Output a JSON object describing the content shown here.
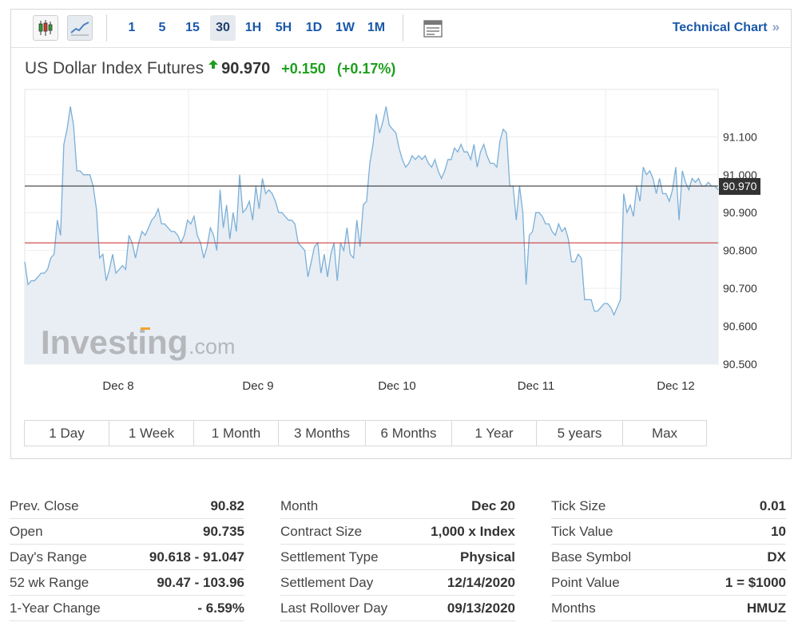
{
  "toolbar": {
    "icons": [
      "candlestick-icon",
      "line-chart-icon",
      "table-icon"
    ],
    "timeframes": [
      "1",
      "5",
      "15",
      "30",
      "1H",
      "5H",
      "1D",
      "1W",
      "1M"
    ],
    "active_timeframe": "30",
    "technical_chart_label": "Technical Chart",
    "technical_chart_chevron": "»"
  },
  "header": {
    "title": "US Dollar Index Futures",
    "price": "90.970",
    "change": "+0.150",
    "change_pct": "(+0.17%)"
  },
  "watermark": {
    "main": "Investing",
    "suffix": ".com"
  },
  "colors": {
    "line": "#7bafd8",
    "area_fill": "#e8eef4",
    "price_line": "#222222",
    "prev_close_line": "#c62828",
    "price_label_bg": "#333333",
    "up": "#1d9f1d",
    "link": "#1a59a8"
  },
  "chart_data": {
    "type": "area",
    "title": "US Dollar Index Futures",
    "x_labels": [
      "Dec 8",
      "Dec 9",
      "Dec 10",
      "Dec 11",
      "Dec 12"
    ],
    "y_ticks": [
      "91.100",
      "91.000",
      "90.900",
      "90.800",
      "90.700",
      "90.600",
      "90.500"
    ],
    "ylim": [
      90.5,
      91.225
    ],
    "grid": true,
    "current_price": 90.97,
    "current_price_label": "90.970",
    "prev_close_line": 90.82,
    "series": [
      {
        "values": [
          90.77,
          90.71,
          90.72,
          90.72,
          90.73,
          90.74,
          90.74,
          90.75,
          90.78,
          90.79,
          90.88,
          90.84,
          91.08,
          91.12,
          91.18,
          91.13,
          91.01,
          91.01,
          91.0,
          91.0,
          91.0,
          90.97,
          90.91,
          90.78,
          90.79,
          90.72,
          90.75,
          90.79,
          90.74,
          90.75,
          90.76,
          90.75,
          90.84,
          90.82,
          90.78,
          90.82,
          90.85,
          90.84,
          90.86,
          90.88,
          90.89,
          90.91,
          90.87,
          90.87,
          90.86,
          90.85,
          90.85,
          90.84,
          90.82,
          90.84,
          90.88,
          90.87,
          90.89,
          90.84,
          90.82,
          90.78,
          90.81,
          90.86,
          90.84,
          90.8,
          90.96,
          90.86,
          90.92,
          90.83,
          90.9,
          90.85,
          91.0,
          90.9,
          90.91,
          90.93,
          90.88,
          90.97,
          90.91,
          90.99,
          90.95,
          90.96,
          90.95,
          90.93,
          90.9,
          90.9,
          90.89,
          90.88,
          90.88,
          90.87,
          90.82,
          90.81,
          90.8,
          90.73,
          90.77,
          90.81,
          90.82,
          90.74,
          90.79,
          90.73,
          90.79,
          90.82,
          90.72,
          90.82,
          90.8,
          90.86,
          90.79,
          90.78,
          90.88,
          90.81,
          90.92,
          90.93,
          91.03,
          91.08,
          91.16,
          91.11,
          91.14,
          91.18,
          91.13,
          91.12,
          91.11,
          91.07,
          91.04,
          91.02,
          91.03,
          91.05,
          91.04,
          91.05,
          91.04,
          91.05,
          91.03,
          91.02,
          91.04,
          91.01,
          90.99,
          91.01,
          91.04,
          91.04,
          91.07,
          91.06,
          91.08,
          91.06,
          91.06,
          91.04,
          91.08,
          91.02,
          91.06,
          91.08,
          91.05,
          91.03,
          91.03,
          91.02,
          91.09,
          91.12,
          91.11,
          90.97,
          90.97,
          90.88,
          90.97,
          90.9,
          90.71,
          90.84,
          90.85,
          90.9,
          90.9,
          90.89,
          90.87,
          90.87,
          90.85,
          90.84,
          90.87,
          90.85,
          90.86,
          90.83,
          90.77,
          90.77,
          90.79,
          90.78,
          90.67,
          90.67,
          90.67,
          90.64,
          90.64,
          90.65,
          90.66,
          90.66,
          90.65,
          90.63,
          90.65,
          90.67,
          90.95,
          90.9,
          90.92,
          90.89,
          90.97,
          90.93,
          91.02,
          91.0,
          91.01,
          90.99,
          90.95,
          90.99,
          90.95,
          90.95,
          90.93,
          90.96,
          91.02,
          90.88,
          91.01,
          90.98,
          90.96,
          90.99,
          90.98,
          90.99,
          90.97,
          90.97,
          90.98,
          90.97,
          90.97,
          90.96
        ]
      }
    ]
  },
  "range_buttons": {
    "labels": [
      "1 Day",
      "1 Week",
      "1 Month",
      "3 Months",
      "6 Months",
      "1 Year",
      "5 years",
      "Max"
    ],
    "active": "1 Week"
  },
  "info_table": {
    "col1": [
      {
        "label": "Prev. Close",
        "value": "90.82"
      },
      {
        "label": "Open",
        "value": "90.735"
      },
      {
        "label": "Day's Range",
        "value": "90.618 - 91.047"
      },
      {
        "label": "52 wk Range",
        "value": "90.47 - 103.96"
      },
      {
        "label": "1-Year Change",
        "value": "- 6.59%"
      }
    ],
    "col2": [
      {
        "label": "Month",
        "value": "Dec 20"
      },
      {
        "label": "Contract Size",
        "value": "1,000 x Index"
      },
      {
        "label": "Settlement Type",
        "value": "Physical"
      },
      {
        "label": "Settlement Day",
        "value": "12/14/2020"
      },
      {
        "label": "Last Rollover Day",
        "value": "09/13/2020"
      }
    ],
    "col3": [
      {
        "label": "Tick Size",
        "value": "0.01"
      },
      {
        "label": "Tick Value",
        "value": "10"
      },
      {
        "label": "Base Symbol",
        "value": "DX"
      },
      {
        "label": "Point Value",
        "value": "1 = $1000"
      },
      {
        "label": "Months",
        "value": "HMUZ"
      }
    ]
  }
}
